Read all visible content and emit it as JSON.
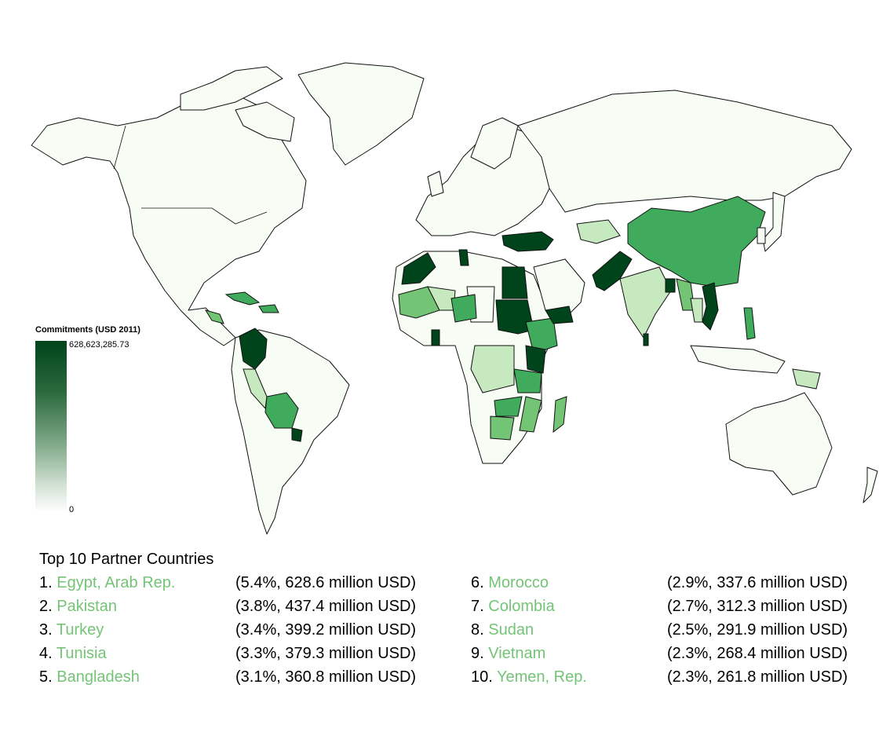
{
  "legend": {
    "title": "Commitments (USD 2011)",
    "max_label": "628,623,285.73",
    "min_label": "0",
    "colors": {
      "high": "#00441b",
      "low": "#f7fcf5"
    }
  },
  "top10": {
    "title": "Top 10 Partner Countries",
    "name_color": "#74c476",
    "items": [
      {
        "rank": "1.",
        "country": "Egypt, Arab Rep.",
        "share": "(5.4%, 628.6 million USD)"
      },
      {
        "rank": "2.",
        "country": "Pakistan",
        "share": "(3.8%, 437.4 million USD)"
      },
      {
        "rank": "3.",
        "country": "Turkey",
        "share": "(3.4%, 399.2 million USD)"
      },
      {
        "rank": "4.",
        "country": "Tunisia",
        "share": "(3.3%, 379.3 million USD)"
      },
      {
        "rank": "5.",
        "country": "Bangladesh",
        "share": "(3.1%, 360.8 million USD)"
      },
      {
        "rank": "6.",
        "country": "Morocco",
        "share": "(2.9%, 337.6 million USD)"
      },
      {
        "rank": "7.",
        "country": "Colombia",
        "share": "(2.7%, 312.3 million USD)"
      },
      {
        "rank": "8.",
        "country": "Sudan",
        "share": "(2.5%, 291.9 million USD)"
      },
      {
        "rank": "9.",
        "country": "Vietnam",
        "share": "(2.3%, 268.4 million USD)"
      },
      {
        "rank": "10.",
        "country": "Yemen, Rep.",
        "share": "(2.3%, 261.8 million USD)"
      }
    ]
  }
}
